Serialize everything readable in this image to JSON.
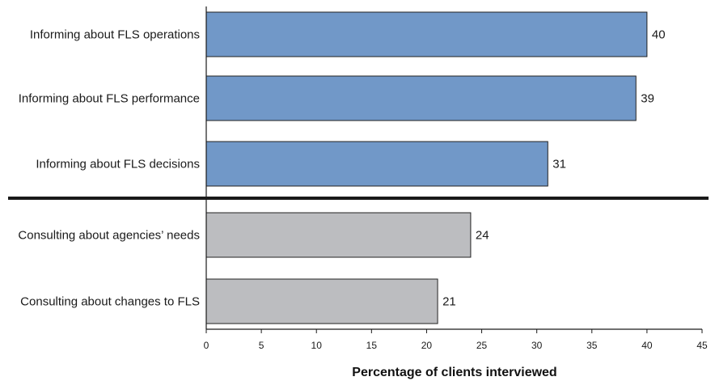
{
  "chart_data": {
    "type": "bar",
    "orientation": "horizontal",
    "categories": [
      "Informing about FLS operations",
      "Informing about FLS performance",
      "Informing about FLS decisions",
      "Consulting about agencies’ needs",
      "Consulting about changes to FLS"
    ],
    "values": [
      40,
      39,
      31,
      24,
      21
    ],
    "groups": [
      {
        "categories": [
          "Informing about FLS operations",
          "Informing about FLS performance",
          "Informing about FLS decisions"
        ],
        "color": "#7198c8"
      },
      {
        "categories": [
          "Consulting about agencies’ needs",
          "Consulting about changes to FLS"
        ],
        "color": "#bcbdc0"
      }
    ],
    "xlabel": "Percentage of clients interviewed",
    "ylabel": "",
    "xlim": [
      0,
      45
    ],
    "xticks": [
      "0",
      "5",
      "10",
      "15",
      "20",
      "25",
      "30",
      "35",
      "40",
      "45"
    ],
    "grid": false,
    "separator_between_groups": true
  },
  "colors": {
    "informing": "#7198c8",
    "consulting": "#bcbdc0",
    "bar_stroke": "#222222",
    "separator": "#1a1a1a"
  }
}
